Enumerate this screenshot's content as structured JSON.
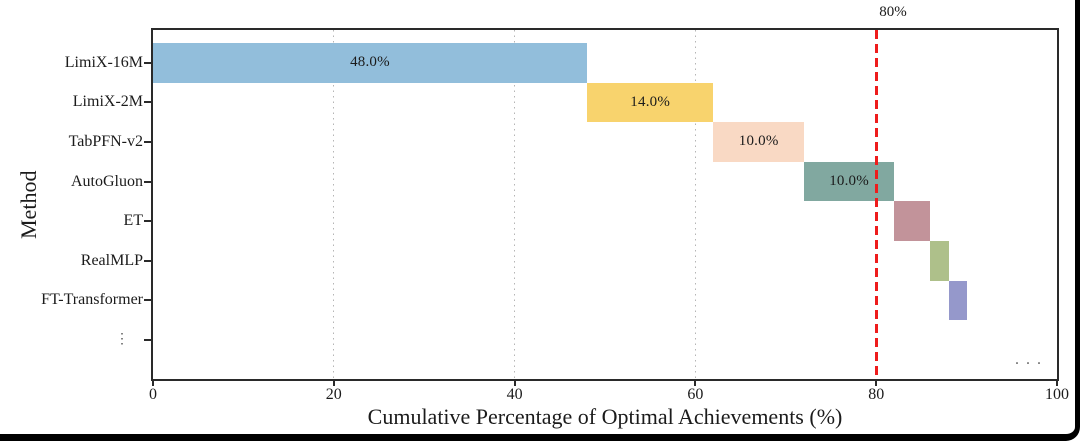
{
  "chart_data": {
    "type": "bar",
    "subtype": "horizontal-waterfall",
    "title": "",
    "xlabel": "Cumulative Percentage of Optimal Achievements (%)",
    "ylabel": "Method",
    "xlim": [
      0,
      100
    ],
    "xticks": [
      0,
      20,
      40,
      60,
      80,
      100
    ],
    "gridlines_at": [
      20,
      40,
      60
    ],
    "grid_style": "dotted",
    "legend": "none",
    "threshold_line": {
      "x": 80,
      "label": "80%",
      "color": "#ee1c1c",
      "style": "dashed"
    },
    "categories": [
      "LimiX-16M",
      "LimiX-2M",
      "TabPFN-v2",
      "AutoGluon",
      "ET",
      "RealMLP",
      "FT-Transformer",
      "⋮"
    ],
    "bars": [
      {
        "method": "LimiX-16M",
        "start": 0,
        "end": 48,
        "value": 48.0,
        "label": "48.0%",
        "color": "#92bedb"
      },
      {
        "method": "LimiX-2M",
        "start": 48,
        "end": 62,
        "value": 14.0,
        "label": "14.0%",
        "color": "#f8d36d"
      },
      {
        "method": "TabPFN-v2",
        "start": 62,
        "end": 72,
        "value": 10.0,
        "label": "10.0%",
        "color": "#f9d9c4"
      },
      {
        "method": "AutoGluon",
        "start": 72,
        "end": 82,
        "value": 10.0,
        "label": "10.0%",
        "color": "#81a8a0"
      },
      {
        "method": "ET",
        "start": 82,
        "end": 86,
        "value": 4.0,
        "label": "",
        "color": "#c2939a"
      },
      {
        "method": "RealMLP",
        "start": 86,
        "end": 88,
        "value": 2.0,
        "label": "",
        "color": "#aec08a"
      },
      {
        "method": "FT-Transformer",
        "start": 88,
        "end": 90,
        "value": 2.0,
        "label": "",
        "color": "#9598cb"
      },
      {
        "method": "⋮",
        "start": null,
        "end": null,
        "value": null,
        "label": "...",
        "color": null
      }
    ],
    "continuation_marker": "..."
  }
}
